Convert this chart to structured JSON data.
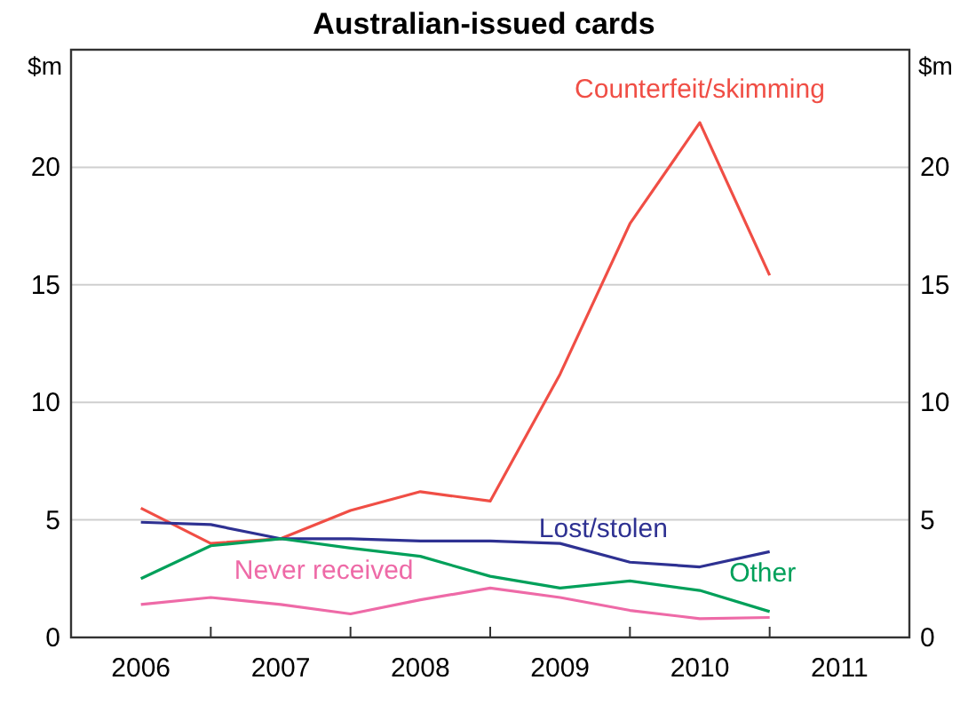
{
  "chart_data": {
    "type": "line",
    "title": "Australian-issued cards",
    "ylabel": "$m",
    "y2label": "$m",
    "x": [
      2006.5,
      2007,
      2007.5,
      2008,
      2008.5,
      2009,
      2009.5,
      2010,
      2010.5,
      2011
    ],
    "xlim": [
      2006,
      2012
    ],
    "xticks": [
      {
        "value": 2006.5,
        "label": "2006"
      },
      {
        "value": 2007,
        "label": null
      },
      {
        "value": 2007.5,
        "label": "2007"
      },
      {
        "value": 2008,
        "label": null
      },
      {
        "value": 2008.5,
        "label": "2008"
      },
      {
        "value": 2009,
        "label": null
      },
      {
        "value": 2009.5,
        "label": "2009"
      },
      {
        "value": 2010,
        "label": null
      },
      {
        "value": 2010.5,
        "label": "2010"
      },
      {
        "value": 2011,
        "label": null
      },
      {
        "value": 2011.5,
        "label": "2011"
      }
    ],
    "ylim": [
      0,
      25
    ],
    "yticks": [
      0,
      5,
      10,
      15,
      20
    ],
    "y2lim": [
      0,
      25
    ],
    "y2ticks": [
      0,
      5,
      10,
      15,
      20
    ],
    "grid": "y",
    "marker": "none",
    "line_style": "solid",
    "series": [
      {
        "name": "Counterfeit/skimming",
        "color": "#f04e45",
        "values": [
          5.5,
          4.0,
          4.2,
          5.4,
          6.2,
          5.8,
          11.2,
          17.6,
          21.9,
          15.4
        ]
      },
      {
        "name": "Lost/stolen",
        "color": "#2e3192",
        "values": [
          4.9,
          4.8,
          4.2,
          4.2,
          4.1,
          4.1,
          4.0,
          3.2,
          3.0,
          3.65
        ]
      },
      {
        "name": "Never received",
        "color": "#ee6aa7",
        "values": [
          1.4,
          1.7,
          1.4,
          1.0,
          1.6,
          2.1,
          1.7,
          1.15,
          0.8,
          0.85
        ]
      },
      {
        "name": "Other",
        "color": "#00a05a",
        "values": [
          2.5,
          3.9,
          4.2,
          3.8,
          3.45,
          2.6,
          2.1,
          2.4,
          2.0,
          1.1
        ]
      }
    ]
  }
}
